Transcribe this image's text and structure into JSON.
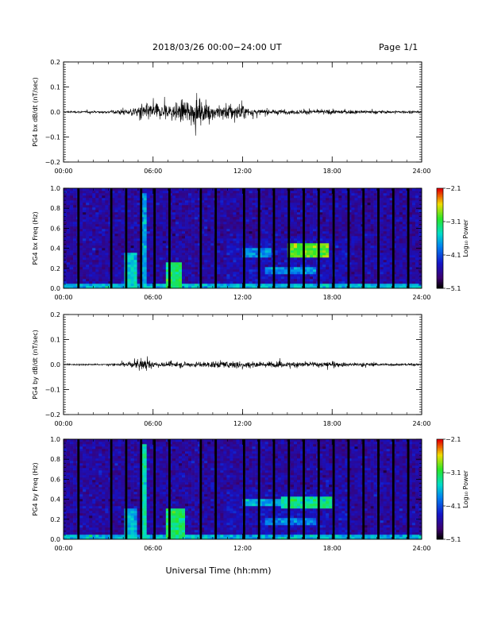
{
  "header": {
    "title": "2018/03/26  00:00−24:00 UT",
    "page": "Page 1/1"
  },
  "xlabel": "Universal Time (hh:mm)",
  "chart_data": [
    {
      "id": "bx-wave",
      "type": "line",
      "ylabel": "PG4 bx dB/dt (nT/sec)",
      "xlim": [
        0,
        24
      ],
      "ylim": [
        -0.2,
        0.2
      ],
      "xticks": [
        "00:00",
        "06:00",
        "12:00",
        "18:00",
        "24:00"
      ],
      "yticks": [
        "−0.2",
        "−0.1",
        "0.0",
        "0.1",
        "0.2"
      ],
      "activity": [
        [
          0,
          0.004
        ],
        [
          3,
          0.006
        ],
        [
          4,
          0.012
        ],
        [
          4.6,
          0.02
        ],
        [
          5.2,
          0.035
        ],
        [
          6,
          0.04
        ],
        [
          7,
          0.035
        ],
        [
          8,
          0.05
        ],
        [
          8.5,
          0.06
        ],
        [
          9,
          0.05
        ],
        [
          10,
          0.035
        ],
        [
          11,
          0.04
        ],
        [
          11.6,
          0.045
        ],
        [
          12.4,
          0.02
        ],
        [
          13,
          0.012
        ],
        [
          15,
          0.01
        ],
        [
          18,
          0.01
        ],
        [
          21,
          0.007
        ],
        [
          24,
          0.006
        ]
      ],
      "color": "#000000"
    },
    {
      "id": "bx-spec",
      "type": "heatmap",
      "ylabel": "PG4 bx Freq (Hz)",
      "xlim": [
        0,
        24
      ],
      "ylim": [
        0,
        1
      ],
      "xticks": [
        "00:00",
        "06:00",
        "12:00",
        "18:00",
        "24:00"
      ],
      "yticks": [
        "0.0",
        "0.2",
        "0.4",
        "0.6",
        "0.8",
        "1.0"
      ],
      "colorbar": {
        "label": "Log₁₀ Power",
        "range": [
          -5.1,
          -2.1
        ],
        "ticks": [
          "−2.1",
          "−3.1",
          "−4.1",
          "−5.1"
        ]
      },
      "gaps": [
        1,
        3.2,
        4.2,
        5.2,
        6.1,
        7.1,
        9.2,
        10.2,
        12.1,
        13.1,
        14.1,
        15.1,
        16.1,
        17.1,
        18.1,
        19.1,
        20.1,
        21.1,
        22.1,
        23.1
      ],
      "features": [
        {
          "t0": 4.0,
          "t1": 5.0,
          "f0": 0.0,
          "f1": 0.35,
          "level": -3.5
        },
        {
          "t0": 5.2,
          "t1": 5.6,
          "f0": 0.0,
          "f1": 0.95,
          "level": -3.7
        },
        {
          "t0": 6.8,
          "t1": 8.0,
          "f0": 0.0,
          "f1": 0.25,
          "level": -3.2
        },
        {
          "t0": 12.0,
          "t1": 14.0,
          "f0": 0.32,
          "f1": 0.4,
          "level": -3.8
        },
        {
          "t0": 15.0,
          "t1": 17.8,
          "f0": 0.3,
          "f1": 0.45,
          "level": -2.9
        },
        {
          "t0": 13.5,
          "t1": 17.0,
          "f0": 0.15,
          "f1": 0.22,
          "level": -3.8
        },
        {
          "t0": 0.0,
          "t1": 24.0,
          "f0": 0.0,
          "f1": 0.05,
          "level": -3.6
        }
      ]
    },
    {
      "id": "by-wave",
      "type": "line",
      "ylabel": "PG4 by dB/dt (nT/sec)",
      "xlim": [
        0,
        24
      ],
      "ylim": [
        -0.2,
        0.2
      ],
      "xticks": [
        "00:00",
        "06:00",
        "12:00",
        "18:00",
        "24:00"
      ],
      "yticks": [
        "−0.2",
        "−0.1",
        "0.0",
        "0.1",
        "0.2"
      ],
      "activity": [
        [
          0,
          0.003
        ],
        [
          3,
          0.004
        ],
        [
          4,
          0.008
        ],
        [
          5,
          0.02
        ],
        [
          5.4,
          0.025
        ],
        [
          6,
          0.014
        ],
        [
          7,
          0.012
        ],
        [
          9,
          0.012
        ],
        [
          10,
          0.014
        ],
        [
          11,
          0.016
        ],
        [
          12,
          0.02
        ],
        [
          13,
          0.012
        ],
        [
          15,
          0.012
        ],
        [
          16,
          0.016
        ],
        [
          18,
          0.012
        ],
        [
          20,
          0.008
        ],
        [
          22,
          0.006
        ],
        [
          24,
          0.005
        ]
      ],
      "color": "#000000"
    },
    {
      "id": "by-spec",
      "type": "heatmap",
      "ylabel": "PG4 by Freq (Hz)",
      "xlim": [
        0,
        24
      ],
      "ylim": [
        0,
        1
      ],
      "xticks": [
        "00:00",
        "06:00",
        "12:00",
        "18:00",
        "24:00"
      ],
      "yticks": [
        "0.0",
        "0.2",
        "0.4",
        "0.6",
        "0.8",
        "1.0"
      ],
      "colorbar": {
        "label": "Log₁₀ Power",
        "range": [
          -5.1,
          -2.1
        ],
        "ticks": [
          "−2.1",
          "−3.1",
          "−4.1",
          "−5.1"
        ]
      },
      "gaps": [
        1,
        3.2,
        4.2,
        5.2,
        6.1,
        7.1,
        9.2,
        10.2,
        12.1,
        13.1,
        14.1,
        15.1,
        16.1,
        17.1,
        18.1,
        19.1,
        20.1,
        21.1,
        22.1,
        23.1
      ],
      "features": [
        {
          "t0": 4.0,
          "t1": 5.0,
          "f0": 0.0,
          "f1": 0.3,
          "level": -3.6
        },
        {
          "t0": 5.2,
          "t1": 5.6,
          "f0": 0.0,
          "f1": 0.95,
          "level": -3.4
        },
        {
          "t0": 6.8,
          "t1": 8.2,
          "f0": 0.0,
          "f1": 0.3,
          "level": -3.2
        },
        {
          "t0": 12.0,
          "t1": 14.5,
          "f0": 0.33,
          "f1": 0.4,
          "level": -3.7
        },
        {
          "t0": 14.5,
          "t1": 18.0,
          "f0": 0.3,
          "f1": 0.42,
          "level": -3.3
        },
        {
          "t0": 13.5,
          "t1": 17.0,
          "f0": 0.15,
          "f1": 0.22,
          "level": -3.9
        },
        {
          "t0": 0.0,
          "t1": 24.0,
          "f0": 0.0,
          "f1": 0.05,
          "level": -3.6
        }
      ]
    }
  ]
}
